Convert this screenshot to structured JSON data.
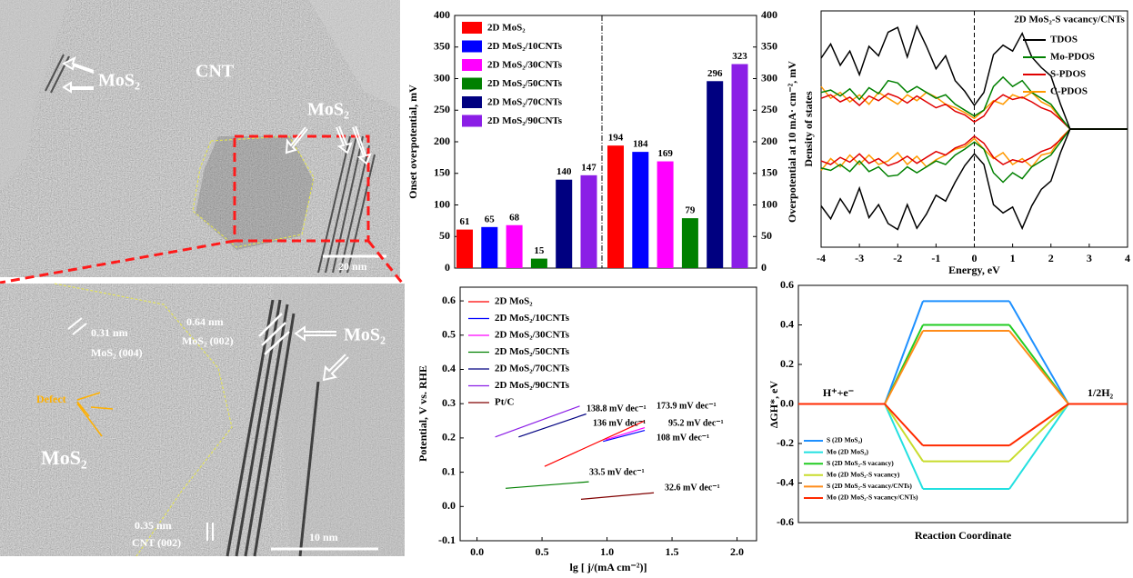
{
  "images": [
    {
      "labels": [
        "MoS₂",
        "CNT",
        "MoS₂",
        "20 nm"
      ]
    },
    {
      "labels": [
        "0.31 nm",
        "MoS₂ (004)",
        "0.64 nm",
        "MoS₂ (002)",
        "MoS₂",
        "Defect",
        "MoS₂",
        "0.35 nm",
        "CNT (002)",
        "10 nm"
      ]
    }
  ],
  "chart_data": [
    {
      "type": "bar",
      "ylabel": "Onset overpotential, mV",
      "y2label": "Overpotential at 10 mA· cm⁻², mV",
      "categories": [
        null,
        null
      ],
      "ylim": [
        0,
        400
      ],
      "yticks": [
        0,
        50,
        100,
        150,
        200,
        250,
        300,
        350,
        400
      ],
      "y2lim": [
        0,
        400
      ],
      "y2ticks": [
        0,
        50,
        100,
        150,
        200,
        250,
        300,
        350,
        400
      ],
      "series": [
        {
          "name": "2D MoS₂",
          "color": "#ff0000",
          "values": [
            61,
            194
          ]
        },
        {
          "name": "2D MoS₂/10CNTs",
          "color": "#0000ff",
          "values": [
            65,
            184
          ]
        },
        {
          "name": "2D MoS₂/30CNTs",
          "color": "#ff00ff",
          "values": [
            68,
            169
          ]
        },
        {
          "name": "2D MoS₂/50CNTs",
          "color": "#008000",
          "values": [
            15,
            79
          ]
        },
        {
          "name": "2D MoS₂/70CNTs",
          "color": "#000080",
          "values": [
            140,
            296
          ]
        },
        {
          "name": "2D MoS₂/90CNTs",
          "color": "#8b1ee6",
          "values": [
            147,
            323
          ]
        }
      ]
    },
    {
      "type": "line",
      "xlabel": "lg [ j/(mA cm⁻²)]",
      "ylabel": "Potential, V vs. RHE",
      "xlim": [
        -0.13,
        2.15
      ],
      "xticks": [
        {
          "value": 0,
          "label": "0.0"
        },
        0.5,
        {
          "value": 1,
          "label": "1.0"
        },
        1.5,
        {
          "value": 2,
          "label": "2.0"
        }
      ],
      "ylim": [
        -0.1,
        0.64
      ],
      "yticks": [
        -0.1,
        {
          "value": 0,
          "label": "0.0"
        },
        0.1,
        0.2,
        0.3,
        0.4,
        0.5,
        0.6
      ],
      "series": [
        {
          "name": "2D MoS₂",
          "color": "#ff0000",
          "x": [
            0.52,
            1.29
          ],
          "values": [
            0.117,
            0.25
          ],
          "annotation": "173.9 mV dec⁻¹"
        },
        {
          "name": "2D MoS₂/10CNTs",
          "color": "#0000ff",
          "x": [
            0.97,
            1.29
          ],
          "values": [
            0.19,
            0.222
          ],
          "annotation": "108 mV dec⁻¹"
        },
        {
          "name": "2D MoS₂/30CNTs",
          "color": "#ff00ff",
          "x": [
            0.99,
            1.29
          ],
          "values": [
            0.195,
            0.23
          ],
          "annotation": "95.2 mV dec⁻¹"
        },
        {
          "name": "2D MoS₂/50CNTs",
          "color": "#008000",
          "x": [
            0.22,
            0.86
          ],
          "values": [
            0.053,
            0.072
          ],
          "annotation": "33.5 mV dec⁻¹"
        },
        {
          "name": "2D MoS₂/70CNTs",
          "color": "#000080",
          "x": [
            0.32,
            0.84
          ],
          "values": [
            0.203,
            0.27
          ],
          "annotation": "136 mV dec⁻¹"
        },
        {
          "name": "2D MoS₂/90CNTs",
          "color": "#8b1ee6",
          "x": [
            0.14,
            0.79
          ],
          "values": [
            0.203,
            0.293
          ],
          "annotation": "138.8 mV dec⁻¹"
        },
        {
          "name": "Pt/C",
          "color": "#800000",
          "x": [
            0.8,
            1.36
          ],
          "values": [
            0.021,
            0.04
          ],
          "annotation": "32.6 mV dec⁻¹"
        }
      ]
    },
    {
      "type": "dos",
      "title": "2D MoS₂-S vacancy/CNTs",
      "xlabel": "Energy, eV",
      "ylabel": "Density of states",
      "xlim": [
        -4,
        4
      ],
      "xticks": [
        -4,
        -3,
        -2,
        -1,
        0,
        1,
        2,
        3,
        4
      ],
      "ylim": [
        -10,
        10
      ],
      "x": [
        -4,
        -3.75,
        -3.5,
        -3.25,
        -3,
        -2.75,
        -2.5,
        -2.25,
        -2,
        -1.75,
        -1.5,
        -1.25,
        -1,
        -0.75,
        -0.5,
        -0.25,
        0,
        0.25,
        0.5,
        0.75,
        1,
        1.25,
        1.5,
        1.75,
        2,
        2.25,
        2.5,
        2.75,
        3,
        3.25,
        3.5,
        3.75,
        4
      ],
      "series": [
        {
          "name": "TDOS",
          "color": "#000000",
          "values": [
            6,
            7.2,
            5.4,
            6.6,
            4.6,
            7,
            6.2,
            8.2,
            8.6,
            6.1,
            8.7,
            7,
            5.1,
            6.2,
            4.1,
            3.2,
            2,
            3.1,
            6.3,
            7.1,
            6.6,
            8.1,
            6.1,
            5.2,
            4.5,
            2.1,
            0,
            0,
            0,
            0,
            0,
            0,
            0
          ],
          "values_down": [
            -6.5,
            -7.6,
            -5.9,
            -7.1,
            -5,
            -7.5,
            -6.4,
            -8,
            -8.5,
            -6.4,
            -8.4,
            -7.2,
            -5.6,
            -6.1,
            -4.5,
            -3.1,
            -2.1,
            -3,
            -6.4,
            -7.1,
            -6.6,
            -8.4,
            -6.5,
            -5.1,
            -4.4,
            -2,
            0,
            0,
            0,
            0,
            0,
            0,
            0
          ]
        },
        {
          "name": "Mo-PDOS",
          "color": "#008000",
          "values": [
            3.1,
            3.3,
            2.8,
            3.4,
            2.5,
            3.5,
            3,
            4.1,
            3.9,
            3.1,
            3.6,
            3.1,
            2.6,
            2.9,
            2.1,
            1.6,
            1.1,
            1.6,
            3.6,
            4.4,
            3.6,
            4.1,
            3.1,
            2.6,
            2.1,
            1,
            0,
            0,
            0,
            0,
            0,
            0,
            0
          ],
          "values_down": [
            -3.3,
            -3.5,
            -3,
            -3.6,
            -2.7,
            -3.6,
            -3.2,
            -4,
            -3.9,
            -3.2,
            -3.7,
            -3.2,
            -2.7,
            -3,
            -2.2,
            -1.7,
            -1.1,
            -1.7,
            -3.7,
            -4.5,
            -3.7,
            -4.2,
            -3.2,
            -2.7,
            -2.2,
            -1.1,
            0,
            0,
            0,
            0,
            0,
            0,
            0
          ]
        },
        {
          "name": "S-PDOS",
          "color": "#e00000",
          "values": [
            2.6,
            2.9,
            2.3,
            2.7,
            2,
            2.8,
            2.4,
            3,
            2.7,
            2.2,
            2.8,
            2.3,
            1.8,
            2.1,
            1.5,
            1.2,
            0.6,
            1.1,
            2.3,
            2.9,
            2.5,
            2.7,
            2.3,
            1.8,
            1.5,
            0.8,
            0,
            0,
            0,
            0,
            0,
            0,
            0
          ],
          "values_down": [
            -2.7,
            -3,
            -2.4,
            -2.8,
            -2.1,
            -2.9,
            -2.5,
            -3.1,
            -2.8,
            -2.3,
            -2.9,
            -2.4,
            -1.9,
            -2.2,
            -1.6,
            -1.3,
            -0.6,
            -1.2,
            -2.4,
            -3,
            -2.6,
            -2.8,
            -2.4,
            -1.9,
            -1.6,
            -0.9,
            0,
            0,
            0,
            0,
            0,
            0,
            0
          ]
        },
        {
          "name": "C-PDOS",
          "color": "#ff9900",
          "values": [
            3.6,
            2.6,
            3.1,
            2.3,
            2.9,
            2.1,
            3.1,
            2.6,
            2.1,
            2.9,
            2.4,
            3.1,
            2.7,
            2.1,
            1.8,
            1.4,
            0.9,
            1.6,
            2.4,
            2.1,
            2.9,
            2.6,
            3.1,
            2.3,
            1.9,
            0.9,
            0,
            0,
            0,
            0,
            0,
            0,
            0
          ],
          "values_down": [
            -3.5,
            -2.5,
            -3.2,
            -2.2,
            -3,
            -2.2,
            -3,
            -2.7,
            -2,
            -3,
            -2.3,
            -3.2,
            -2.6,
            -2.2,
            -1.7,
            -1.5,
            -0.8,
            -1.7,
            -2.5,
            -2,
            -3,
            -2.5,
            -3.2,
            -2.2,
            -2,
            -0.8,
            0,
            0,
            0,
            0,
            0,
            0,
            0
          ]
        }
      ]
    },
    {
      "type": "energy",
      "xlabel": "Reaction Coordinate",
      "ylabel": "ΔGH*, eV",
      "categories": [
        "H⁺+e⁻",
        null,
        "1/2H₂"
      ],
      "ylim": [
        -0.6,
        0.6
      ],
      "yticks": [
        -0.6,
        -0.4,
        -0.2,
        {
          "value": 0,
          "label": "0.0"
        },
        0.2,
        0.4,
        0.6
      ],
      "series": [
        {
          "name": "S (2D MoS₂)",
          "color": "#1e90ff",
          "values": [
            0,
            0.52,
            0
          ]
        },
        {
          "name": "Mo (2D MoS₂)",
          "color": "#22e0e0",
          "values": [
            0,
            -0.43,
            0
          ]
        },
        {
          "name": "S (2D MoS₂-S vacancy)",
          "color": "#22cc22",
          "values": [
            0,
            0.4,
            0
          ]
        },
        {
          "name": "Mo (2D MoS₂-S vacancy)",
          "color": "#c8dc2c",
          "values": [
            0,
            -0.29,
            0
          ]
        },
        {
          "name": "S (2D MoS₂-S vacancy/CNTs)",
          "color": "#ff8c1a",
          "values": [
            0,
            0.37,
            0
          ]
        },
        {
          "name": "Mo (2D MoS₂-S vacancy/CNTs)",
          "color": "#ff2a00",
          "values": [
            0,
            -0.21,
            0
          ]
        }
      ]
    }
  ]
}
